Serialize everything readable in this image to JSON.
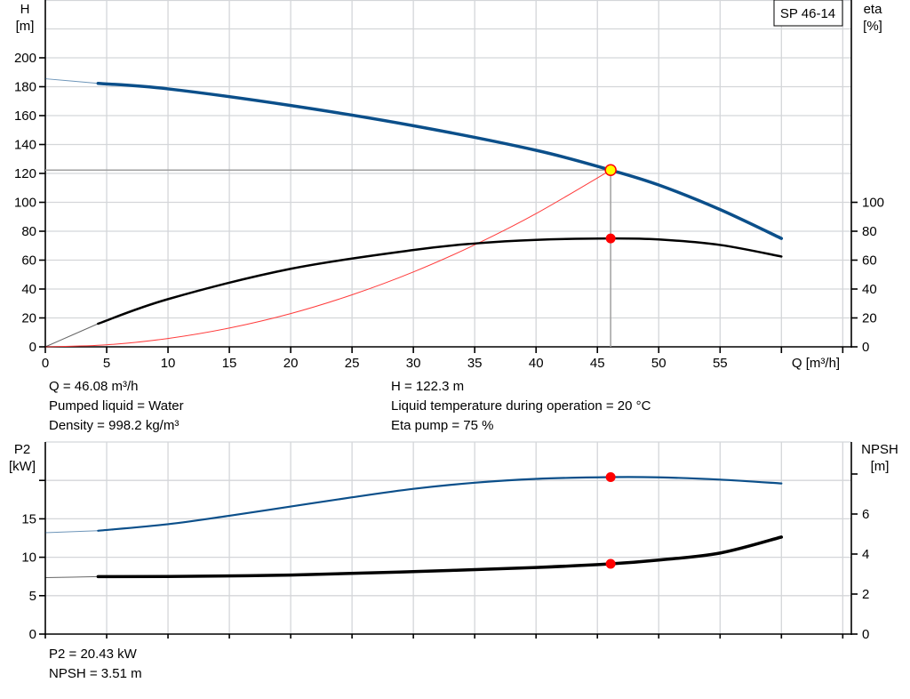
{
  "title_box": "SP 46-14",
  "top_chart": {
    "y_left_label": "H",
    "y_left_unit": "[m]",
    "y_right_label": "eta",
    "y_right_unit": "[%]",
    "x_label": "Q [m³/h]",
    "info_left": [
      "Q = 46.08 m³/h",
      "Pumped liquid = Water",
      "Density = 998.2 kg/m³"
    ],
    "info_right": [
      "H = 122.3 m",
      "Liquid temperature during operation = 20 °C",
      "Eta pump = 75 %"
    ]
  },
  "bottom_chart": {
    "y_left_label": "P2",
    "y_left_unit": "[kW]",
    "y_right_label": "NPSH",
    "y_right_unit": "[m]",
    "info_left": [
      "P2 = 20.43 kW",
      "NPSH = 3.51 m"
    ]
  },
  "chart_data": [
    {
      "type": "line",
      "x_axis": {
        "label": "Q [m³/h]",
        "range": [
          0,
          65
        ],
        "ticks": [
          0,
          5,
          10,
          15,
          20,
          25,
          30,
          35,
          40,
          45,
          50,
          55
        ]
      },
      "y_left": {
        "label": "H [m]",
        "range": [
          0,
          240
        ],
        "ticks": [
          0,
          20,
          40,
          60,
          80,
          100,
          120,
          140,
          160,
          180,
          200
        ]
      },
      "y_right": {
        "label": "eta [%]",
        "range": [
          0,
          240
        ],
        "ticks": [
          0,
          20,
          40,
          60,
          80,
          100
        ]
      },
      "grid": true,
      "valid_range_start_q": 4.3,
      "series": [
        {
          "id": "H",
          "axis": "left",
          "color": "#0b4f8a",
          "points": [
            [
              0,
              185.5
            ],
            [
              4.3,
              182.3
            ],
            [
              10,
              178.5
            ],
            [
              20,
              167
            ],
            [
              30,
              153
            ],
            [
              40,
              136
            ],
            [
              46.08,
              122.3
            ],
            [
              50,
              112
            ],
            [
              55,
              95
            ],
            [
              60,
              75
            ]
          ]
        },
        {
          "id": "eta",
          "axis": "right",
          "color": "#000000",
          "points": [
            [
              0,
              0
            ],
            [
              4.3,
              16
            ],
            [
              10,
              33
            ],
            [
              20,
              54
            ],
            [
              30,
              67
            ],
            [
              35,
              71.5
            ],
            [
              40,
              74
            ],
            [
              46.08,
              75
            ],
            [
              50,
              74.3
            ],
            [
              55,
              70.5
            ],
            [
              60,
              62.5
            ]
          ]
        }
      ],
      "system_curve": {
        "color": "#ff3b3b",
        "points": [
          [
            0,
            0
          ],
          [
            5,
            1.4
          ],
          [
            10,
            5.8
          ],
          [
            15,
            13
          ],
          [
            20,
            23
          ],
          [
            25,
            36
          ],
          [
            30,
            51.8
          ],
          [
            35,
            70.6
          ],
          [
            40,
            92.2
          ],
          [
            46.08,
            122.3
          ]
        ]
      },
      "operating_point": {
        "Q": 46.08,
        "H": 122.3,
        "eta": 75
      }
    },
    {
      "type": "line",
      "x_axis": {
        "range": [
          0,
          65
        ],
        "ticks": [
          0,
          5,
          10,
          15,
          20,
          25,
          30,
          35,
          40,
          45,
          50,
          55
        ]
      },
      "y_left": {
        "label": "P2 [kW]",
        "range": [
          0,
          25
        ],
        "ticks": [
          0,
          5,
          10,
          15,
          20
        ],
        "tick_labels": [
          "0",
          "5",
          "10",
          "15",
          ""
        ]
      },
      "y_right": {
        "label": "NPSH [m]",
        "range": [
          0,
          9.6
        ],
        "ticks": [
          0,
          2,
          4,
          6,
          8
        ],
        "tick_labels": [
          "0",
          "2",
          "4",
          "6",
          ""
        ]
      },
      "grid": true,
      "valid_range_start_q": 4.3,
      "series": [
        {
          "id": "P2",
          "axis": "left",
          "color": "#0b4f8a",
          "points": [
            [
              0,
              13.2
            ],
            [
              4.3,
              13.45
            ],
            [
              10,
              14.3
            ],
            [
              15,
              15.4
            ],
            [
              20,
              16.6
            ],
            [
              25,
              17.8
            ],
            [
              30,
              18.9
            ],
            [
              35,
              19.7
            ],
            [
              40,
              20.2
            ],
            [
              46.08,
              20.43
            ],
            [
              50,
              20.4
            ],
            [
              55,
              20.1
            ],
            [
              60,
              19.6
            ]
          ]
        },
        {
          "id": "NPSH",
          "axis": "right",
          "color": "#000000",
          "points": [
            [
              0,
              2.82
            ],
            [
              4.3,
              2.87
            ],
            [
              10,
              2.88
            ],
            [
              20,
              2.95
            ],
            [
              30,
              3.12
            ],
            [
              40,
              3.33
            ],
            [
              46.08,
              3.51
            ],
            [
              50,
              3.7
            ],
            [
              55,
              4.05
            ],
            [
              60,
              4.85
            ]
          ]
        }
      ],
      "operating_point": {
        "Q": 46.08,
        "P2": 20.43,
        "NPSH": 3.51
      }
    }
  ]
}
